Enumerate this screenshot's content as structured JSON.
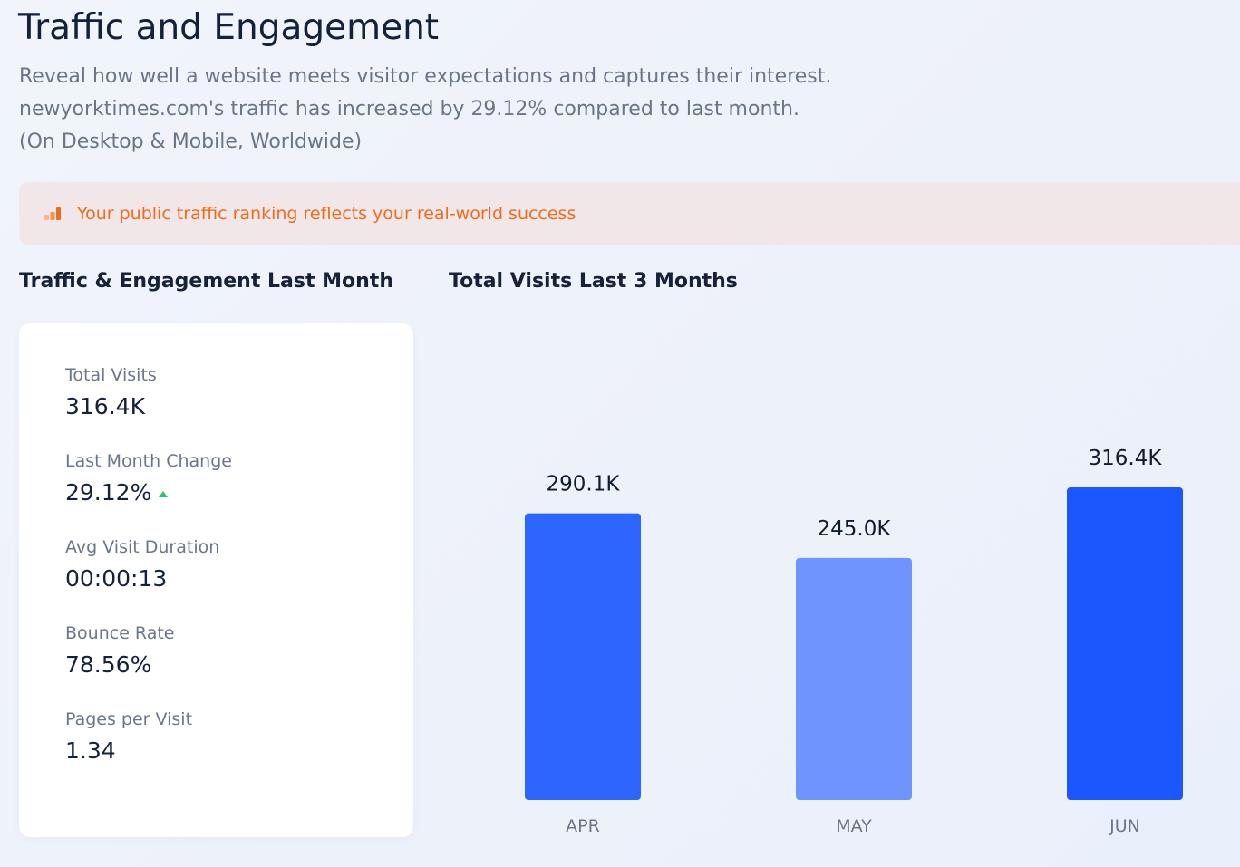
{
  "header": {
    "title": "Traffic and Engagement",
    "description_lines": [
      "Reveal how well a website meets visitor expectations and captures their interest.",
      "newyorktimes.com's traffic has increased by 29.12% compared to last month.",
      "(On Desktop & Mobile, Worldwide)"
    ]
  },
  "banner": {
    "icon": "bar-chart-icon",
    "text": "Your public traffic ranking reflects your real-world success",
    "color": "#f06c1b"
  },
  "last_month": {
    "title": "Traffic & Engagement Last Month",
    "metrics": [
      {
        "label": "Total Visits",
        "value": "316.4K"
      },
      {
        "label": "Last Month Change",
        "value": "29.12%",
        "trend": "up"
      },
      {
        "label": "Avg Visit Duration",
        "value": "00:00:13"
      },
      {
        "label": "Bounce Rate",
        "value": "78.56%"
      },
      {
        "label": "Pages per Visit",
        "value": "1.34"
      }
    ]
  },
  "visits_chart_title": "Total Visits Last 3 Months",
  "chart_data": {
    "type": "bar",
    "title": "Total Visits Last 3 Months",
    "categories": [
      "APR",
      "MAY",
      "JUN"
    ],
    "values": [
      290100,
      245000,
      316400
    ],
    "value_labels": [
      "290.1K",
      "245.0K",
      "316.4K"
    ],
    "bar_colors": [
      "#2d66fd",
      "#6f95fd",
      "#1b57fd"
    ],
    "ylim": [
      0,
      316400
    ],
    "xlabel": "",
    "ylabel": "",
    "grid": false
  }
}
